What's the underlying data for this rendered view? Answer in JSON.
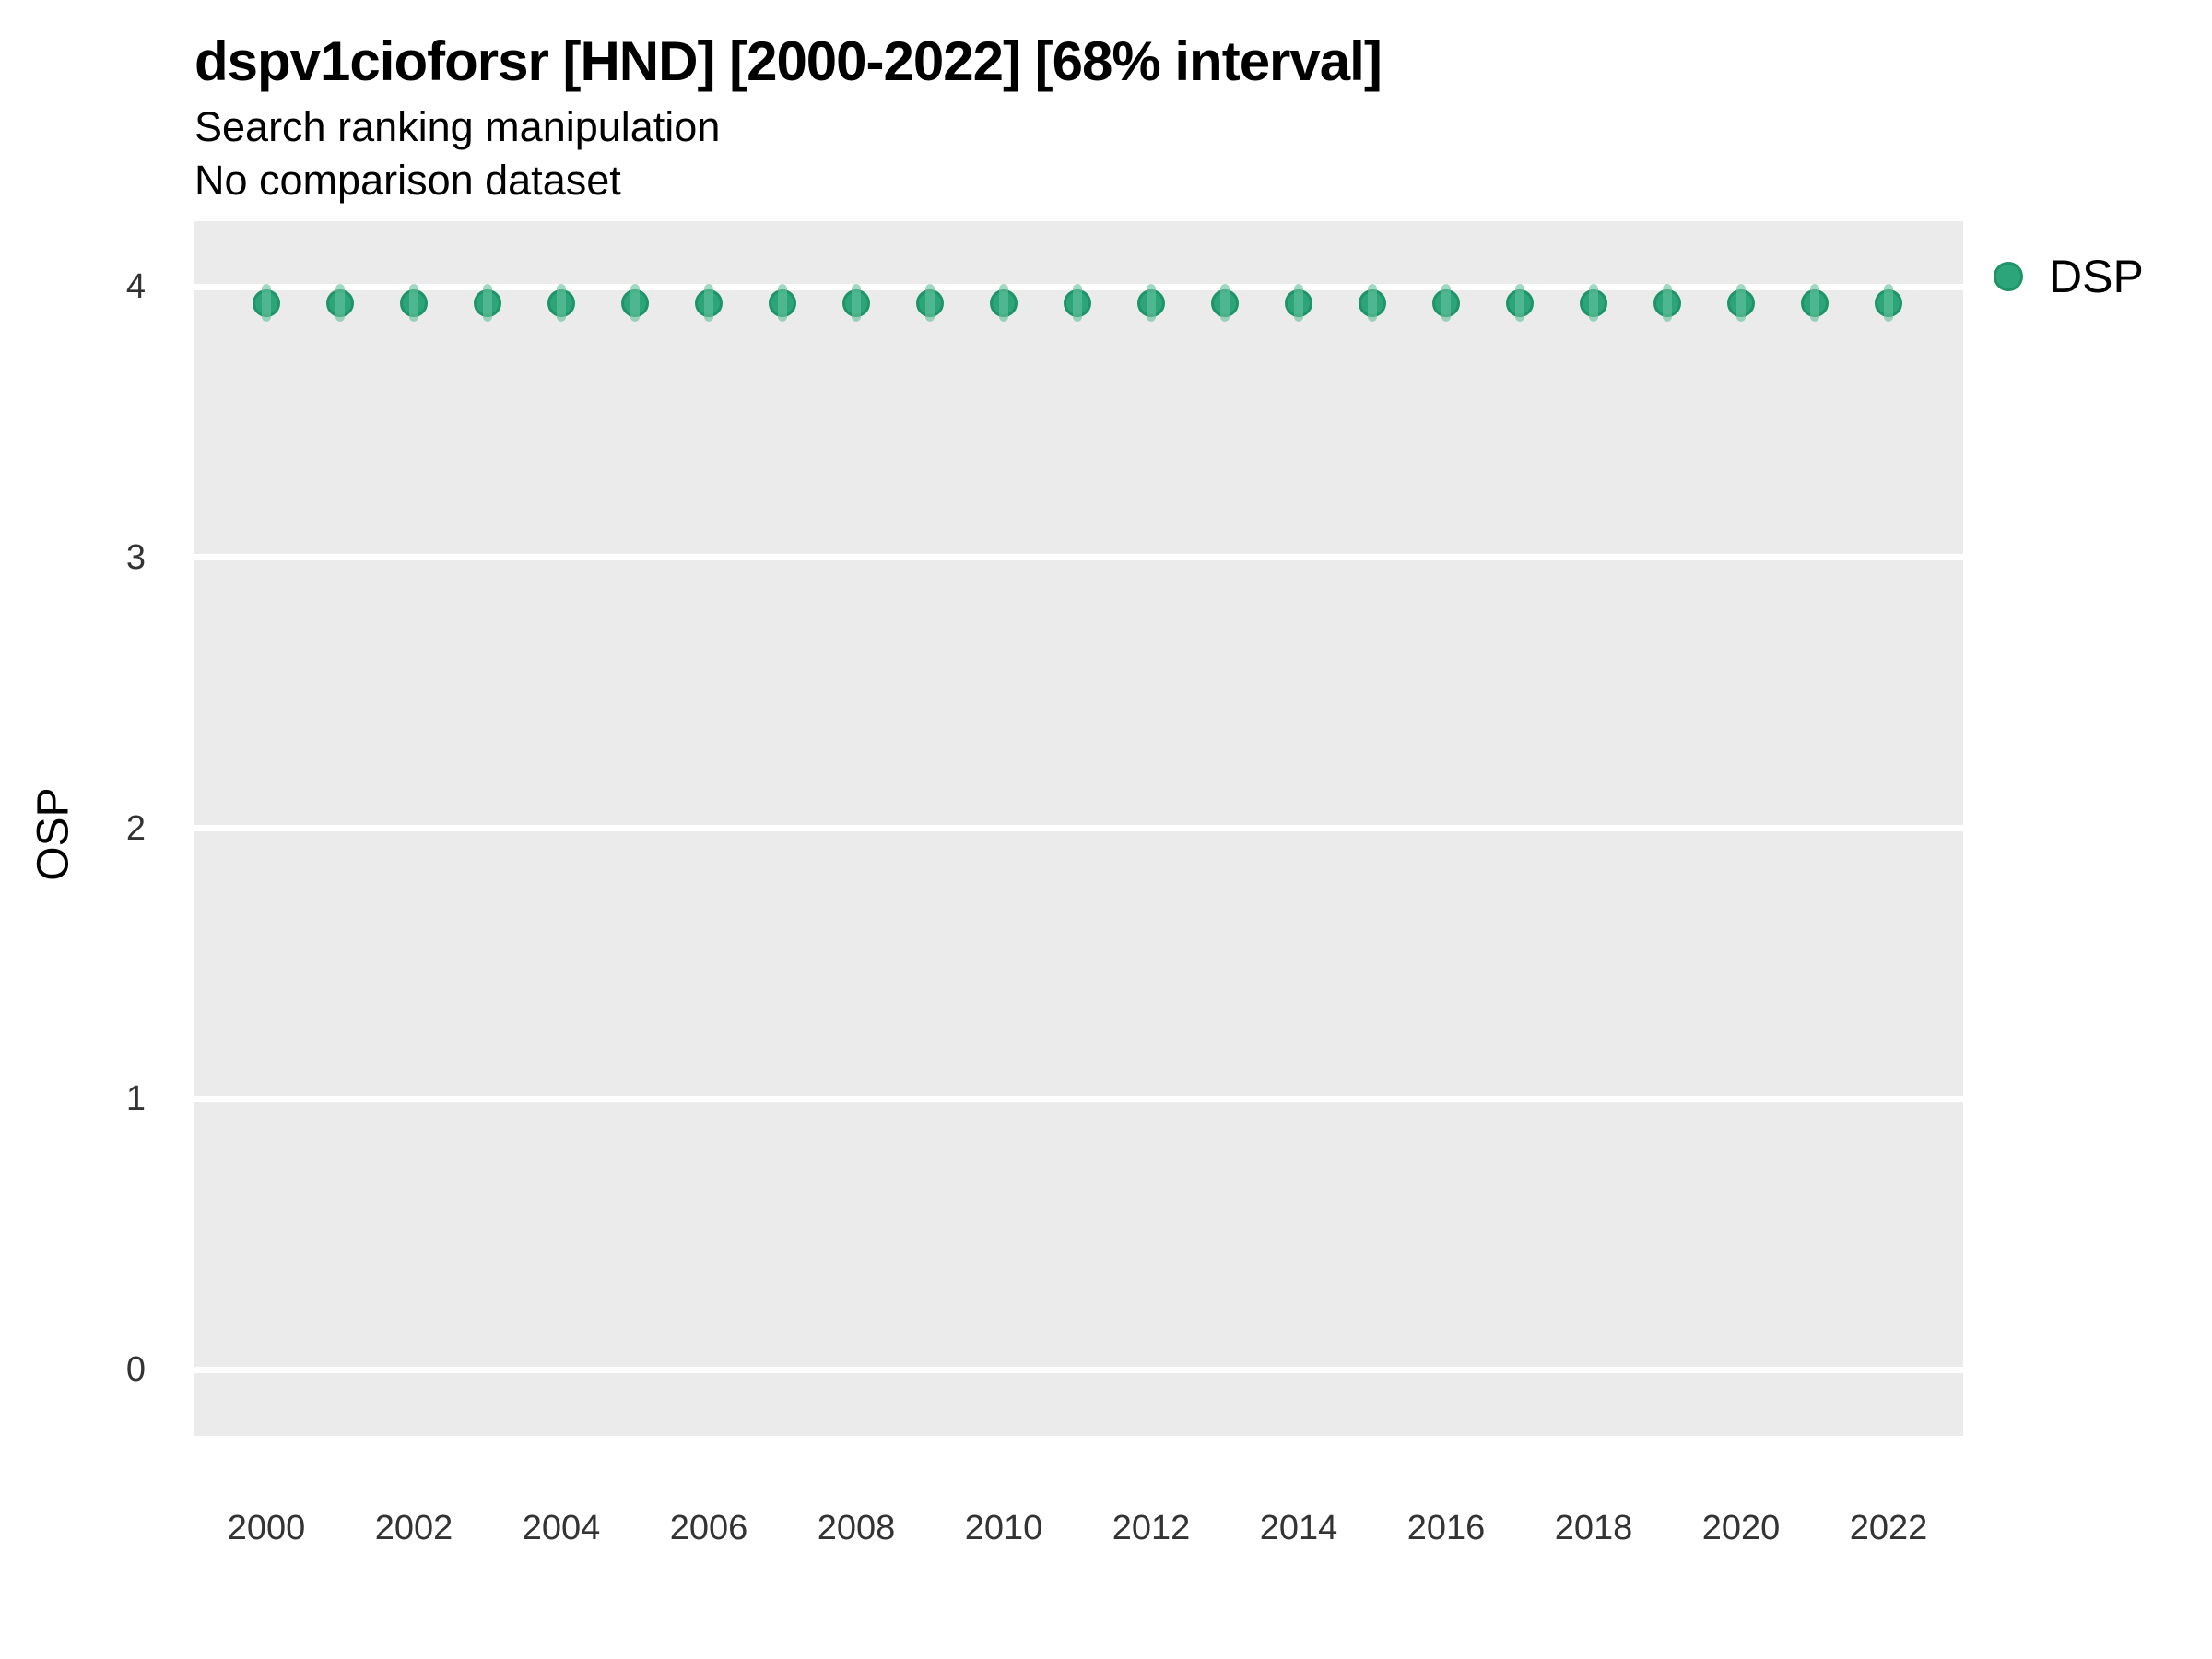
{
  "title": "dspv1cioforsr [HND] [2000-2022] [68% interval]",
  "subtitle_line1": "Search ranking manipulation",
  "subtitle_line2": "No comparison dataset",
  "y_axis": {
    "label": "OSP",
    "ticks": [
      0,
      1,
      2,
      3,
      4
    ]
  },
  "x_axis": {
    "ticks": [
      2000,
      2002,
      2004,
      2006,
      2008,
      2010,
      2012,
      2014,
      2016,
      2018,
      2020,
      2022
    ]
  },
  "legend": {
    "entries": [
      {
        "label": "DSP",
        "color": "#2CA57B"
      }
    ]
  },
  "colors": {
    "panel_background": "#EBEBEB",
    "gridline": "#FFFFFF",
    "point_fill": "#2CA57B",
    "point_stroke": "#1E9468",
    "interval": "rgba(102, 194, 157, 0.62)",
    "tick_text": "#333333",
    "text": "#000000"
  },
  "chart_data": {
    "type": "scatter",
    "title": "dspv1cioforsr [HND] [2000-2022] [68% interval]",
    "subtitle": [
      "Search ranking manipulation",
      "No comparison dataset"
    ],
    "xlabel": "",
    "ylabel": "OSP",
    "x": [
      2000,
      2001,
      2002,
      2003,
      2004,
      2005,
      2006,
      2007,
      2008,
      2009,
      2010,
      2011,
      2012,
      2013,
      2014,
      2015,
      2016,
      2017,
      2018,
      2019,
      2020,
      2021,
      2022
    ],
    "series": [
      {
        "name": "DSP",
        "values": [
          3.94,
          3.94,
          3.94,
          3.94,
          3.94,
          3.94,
          3.94,
          3.94,
          3.94,
          3.94,
          3.94,
          3.94,
          3.94,
          3.94,
          3.94,
          3.94,
          3.94,
          3.94,
          3.94,
          3.94,
          3.94,
          3.94,
          3.94
        ],
        "interval_low": [
          3.87,
          3.87,
          3.87,
          3.87,
          3.87,
          3.87,
          3.87,
          3.87,
          3.87,
          3.87,
          3.87,
          3.87,
          3.87,
          3.87,
          3.87,
          3.87,
          3.87,
          3.87,
          3.87,
          3.87,
          3.87,
          3.87,
          3.87
        ],
        "interval_high": [
          4.01,
          4.01,
          4.01,
          4.01,
          4.01,
          4.01,
          4.01,
          4.01,
          4.01,
          4.01,
          4.01,
          4.01,
          4.01,
          4.01,
          4.01,
          4.01,
          4.01,
          4.01,
          4.01,
          4.01,
          4.01,
          4.01,
          4.01
        ]
      }
    ],
    "interval_level": "68%",
    "xlim": [
      1999,
      2023
    ],
    "ylim": [
      -0.25,
      4.24
    ],
    "y_ticks": [
      0,
      1,
      2,
      3,
      4
    ],
    "x_ticks": [
      2000,
      2002,
      2004,
      2006,
      2008,
      2010,
      2012,
      2014,
      2016,
      2018,
      2020,
      2022
    ],
    "grid": "major-y-only",
    "legend_position": "right"
  }
}
